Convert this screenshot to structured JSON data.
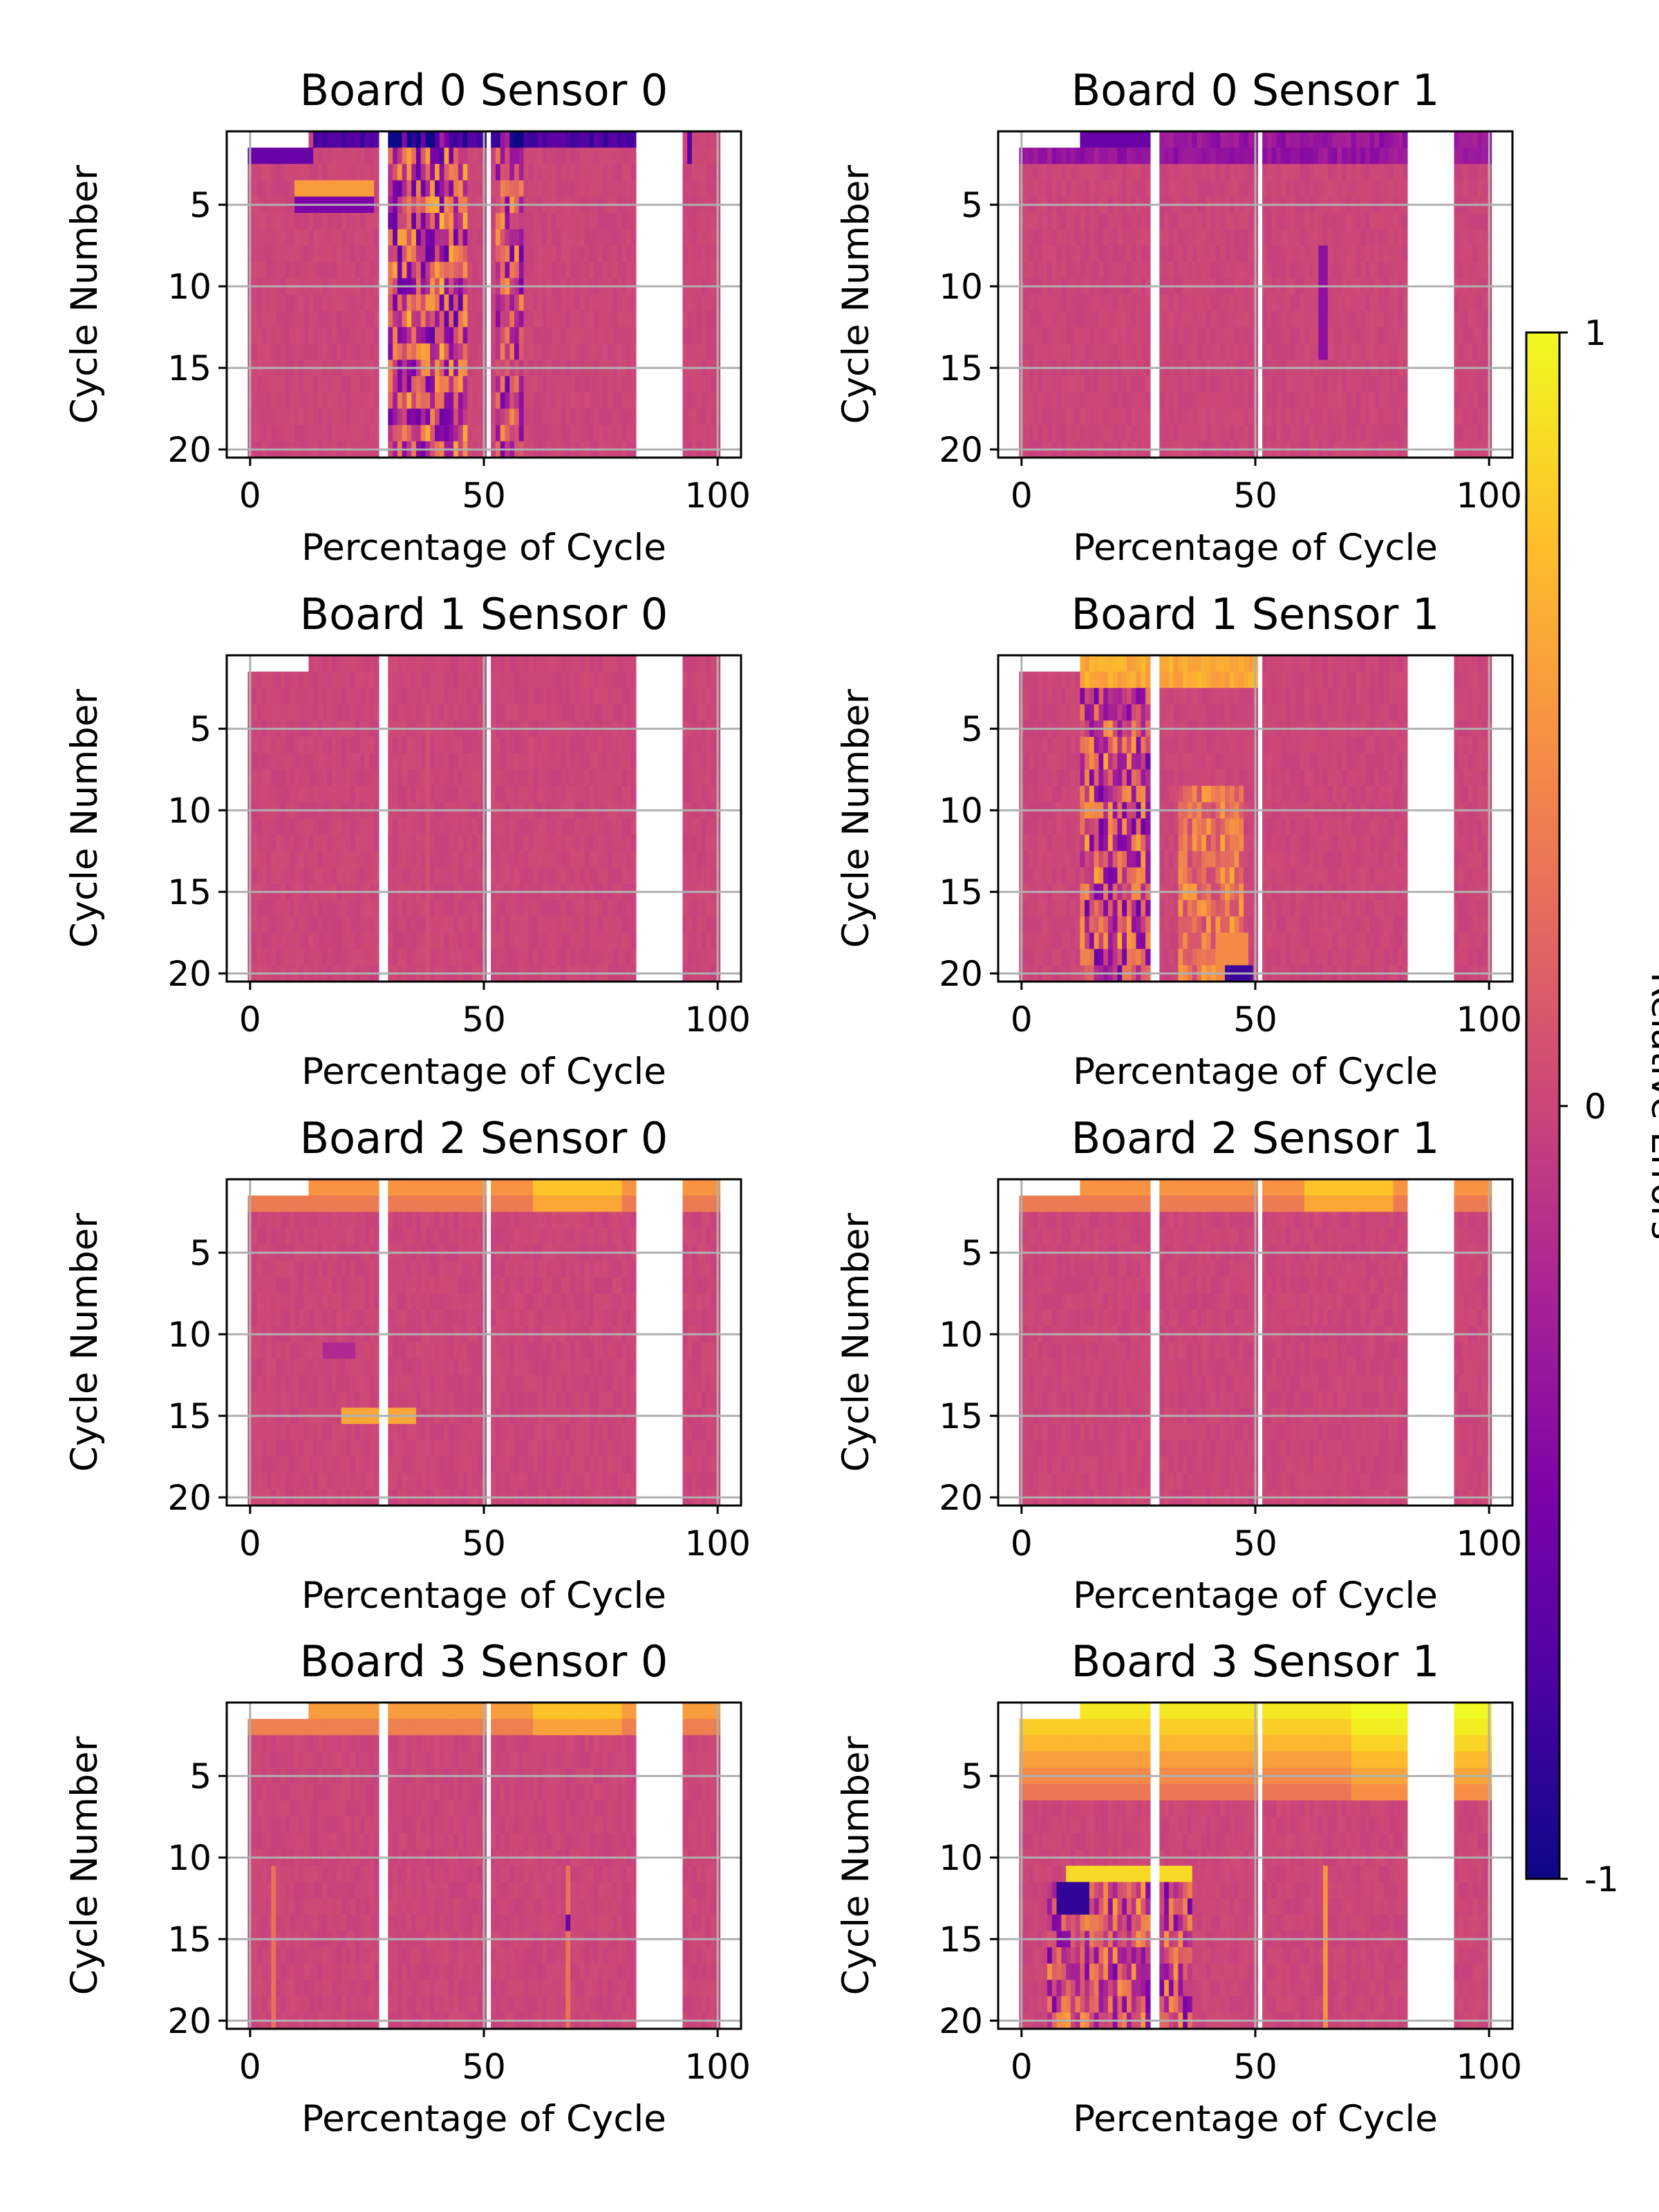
{
  "chart_data": {
    "type": "heatmap",
    "colormap": "plasma",
    "grid": true,
    "colorbar": {
      "label": "Relative Errors",
      "ticks": [
        "1",
        "0",
        "-1"
      ],
      "range": [
        -1,
        1
      ],
      "position": "right"
    },
    "x_ticks": [
      "0",
      "50",
      "100"
    ],
    "y_ticks": [
      "5",
      "10",
      "15",
      "20"
    ],
    "xlim": [
      -5,
      105
    ],
    "ylim": [
      21,
      1
    ],
    "white_gaps_percent": [
      [
        27.5,
        29.5
      ],
      [
        50.5,
        51.5
      ],
      [
        83,
        92.5
      ]
    ],
    "panels": [
      {
        "title": "Board 0 Sensor 0",
        "xlabel": "Percentage of Cycle",
        "ylabel": "Cycle Number",
        "pattern": "strong dark-blue stripes at 30-55%, dark-blue band in top rows, orange streak near cycle 4"
      },
      {
        "title": "Board 0 Sensor 1",
        "xlabel": "Percentage of Cycle",
        "ylabel": "Cycle Number",
        "pattern": "mostly near zero, purple band in first rows"
      },
      {
        "title": "Board 1 Sensor 0",
        "xlabel": "Percentage of Cycle",
        "ylabel": "Cycle Number",
        "pattern": "uniform near zero"
      },
      {
        "title": "Board 1 Sensor 1",
        "xlabel": "Percentage of Cycle",
        "ylabel": "Cycle Number",
        "pattern": "orange top rows 13-50%, purple stripes 13-30%, dark-blue at cycle 20 near 45%"
      },
      {
        "title": "Board 2 Sensor 0",
        "xlabel": "Percentage of Cycle",
        "ylabel": "Cycle Number",
        "pattern": "orange first rows, orange streak near cycle 14-15 at 20-35%"
      },
      {
        "title": "Board 2 Sensor 1",
        "xlabel": "Percentage of Cycle",
        "ylabel": "Cycle Number",
        "pattern": "orange first rows, otherwise near zero"
      },
      {
        "title": "Board 3 Sensor 0",
        "xlabel": "Percentage of Cycle",
        "ylabel": "Cycle Number",
        "pattern": "orange first rows, faint orange lines near 5% and 68%"
      },
      {
        "title": "Board 3 Sensor 1",
        "xlabel": "Percentage of Cycle",
        "ylabel": "Cycle Number",
        "pattern": "yellow first rows, yellow block cycle 11 at 10-36%, dark-blue patches cycle 12-20"
      }
    ]
  }
}
